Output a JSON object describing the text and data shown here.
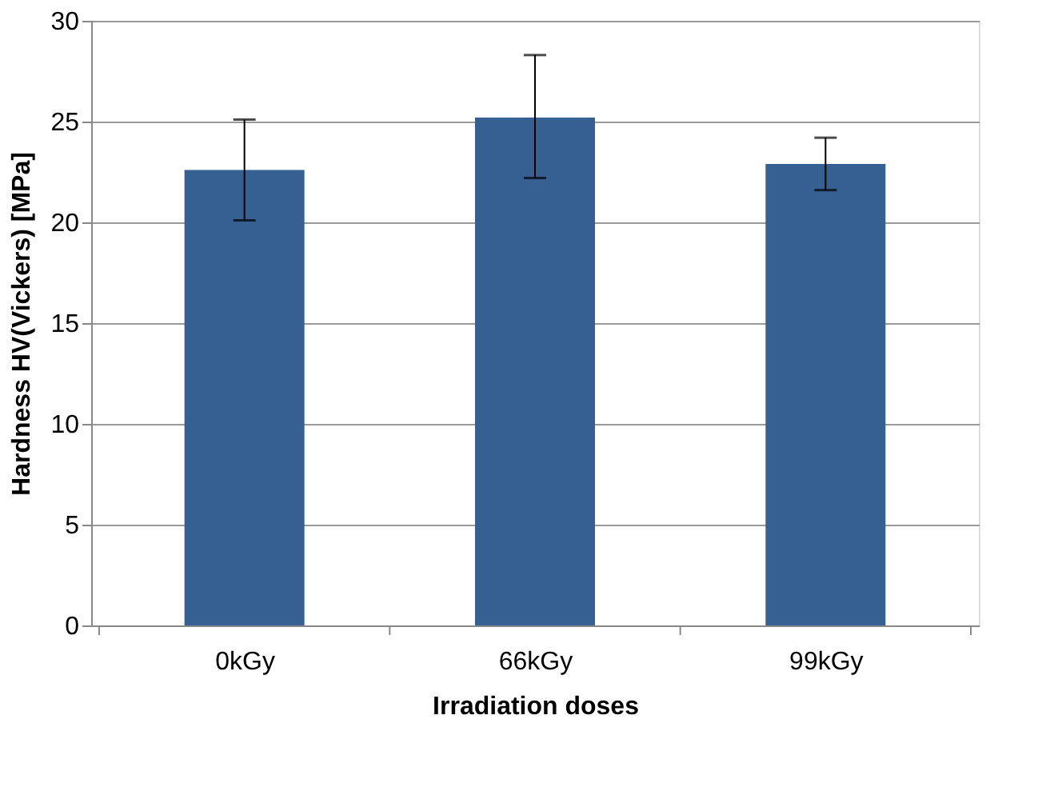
{
  "chart_data": {
    "type": "bar",
    "xlabel": "Irradiation doses",
    "ylabel": "Hardness HV(Vickers) [MPa]",
    "categories": [
      "0kGy",
      "66kGy",
      "99kGy"
    ],
    "values": [
      22.6,
      25.2,
      22.9
    ],
    "errors": [
      [
        20.1,
        25.1
      ],
      [
        22.2,
        28.3
      ],
      [
        21.6,
        24.2
      ]
    ],
    "color": "#376092",
    "ylim": [
      0,
      30
    ],
    "yticks": [
      0,
      5,
      10,
      15,
      20,
      25,
      30
    ],
    "grid": "y"
  }
}
